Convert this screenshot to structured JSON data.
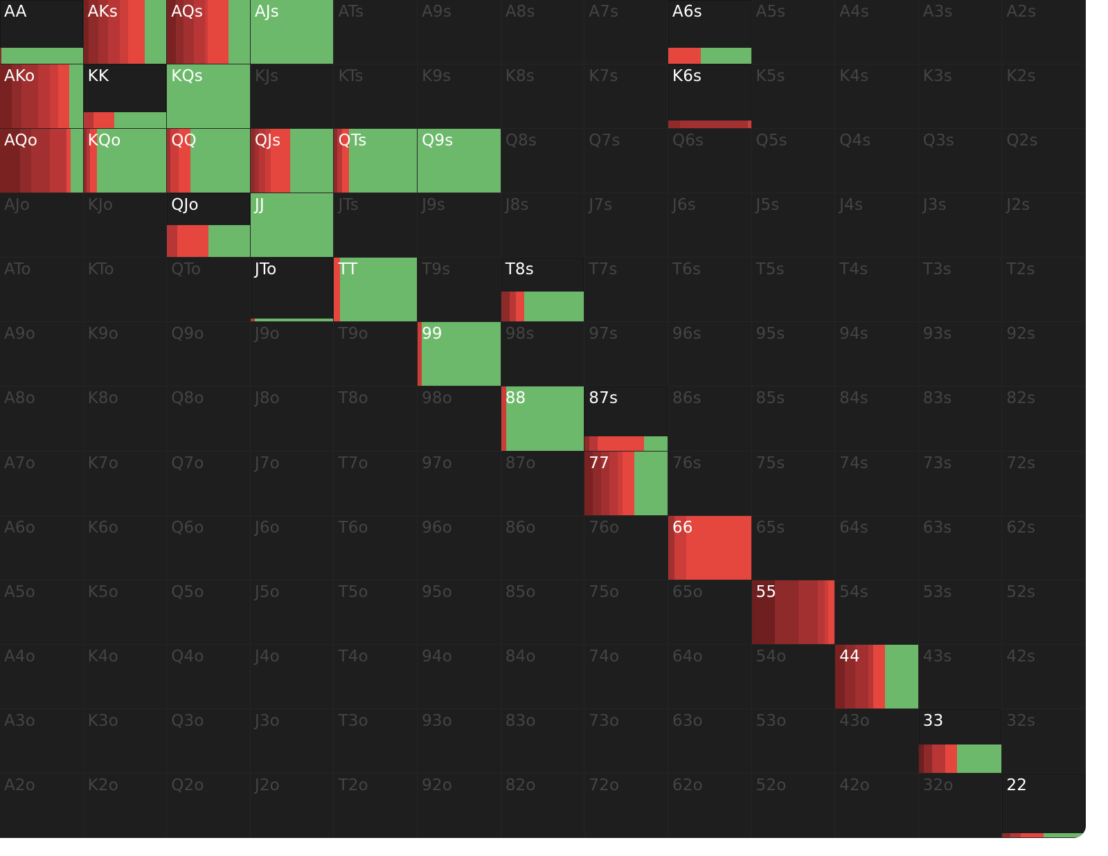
{
  "colors": {
    "background": "#1e1e1e",
    "empty_label": "#444444",
    "active_label": "#ffffff",
    "raise_light": "#e5473f",
    "raise_dark": "#6f1f1f",
    "call_green": "#6db96b"
  },
  "hands": [
    "AA",
    "AKs",
    "AQs",
    "AJs",
    "ATs",
    "A9s",
    "A8s",
    "A7s",
    "A6s",
    "A5s",
    "A4s",
    "A3s",
    "A2s",
    "AKo",
    "KK",
    "KQs",
    "KJs",
    "KTs",
    "K9s",
    "K8s",
    "K7s",
    "K6s",
    "K5s",
    "K4s",
    "K3s",
    "K2s",
    "AQo",
    "KQo",
    "QQ",
    "QJs",
    "QTs",
    "Q9s",
    "Q8s",
    "Q7s",
    "Q6s",
    "Q5s",
    "Q4s",
    "Q3s",
    "Q2s",
    "AJo",
    "KJo",
    "QJo",
    "JJ",
    "JTs",
    "J9s",
    "J8s",
    "J7s",
    "J6s",
    "J5s",
    "J4s",
    "J3s",
    "J2s",
    "ATo",
    "KTo",
    "QTo",
    "JTo",
    "TT",
    "T9s",
    "T8s",
    "T7s",
    "T6s",
    "T5s",
    "T4s",
    "T3s",
    "T2s",
    "A9o",
    "K9o",
    "Q9o",
    "J9o",
    "T9o",
    "99",
    "98s",
    "97s",
    "96s",
    "95s",
    "94s",
    "93s",
    "92s",
    "A8o",
    "K8o",
    "Q8o",
    "J8o",
    "T8o",
    "98o",
    "88",
    "87s",
    "86s",
    "85s",
    "84s",
    "83s",
    "82s",
    "A7o",
    "K7o",
    "Q7o",
    "J7o",
    "T7o",
    "97o",
    "87o",
    "77",
    "76s",
    "75s",
    "74s",
    "73s",
    "72s",
    "A6o",
    "K6o",
    "Q6o",
    "J6o",
    "T6o",
    "96o",
    "86o",
    "76o",
    "66",
    "65s",
    "64s",
    "63s",
    "62s",
    "A5o",
    "K5o",
    "Q5o",
    "J5o",
    "T5o",
    "95o",
    "85o",
    "75o",
    "65o",
    "55",
    "54s",
    "53s",
    "52s",
    "A4o",
    "K4o",
    "Q4o",
    "J4o",
    "T4o",
    "94o",
    "84o",
    "74o",
    "64o",
    "54o",
    "44",
    "43s",
    "42s",
    "A3o",
    "K3o",
    "Q3o",
    "J3o",
    "T3o",
    "93o",
    "83o",
    "73o",
    "63o",
    "53o",
    "43o",
    "33",
    "32s",
    "A2o",
    "K2o",
    "Q2o",
    "J2o",
    "T2o",
    "92o",
    "82o",
    "72o",
    "62o",
    "52o",
    "42o",
    "32o",
    "22"
  ],
  "weighted": {
    "AA": {
      "freq": 0.25,
      "segments": [
        [
          "#8a2a2a",
          0.02
        ],
        [
          "#6db96b",
          0.98
        ]
      ]
    },
    "AKs": {
      "freq": 1.0,
      "segments": [
        [
          "#7a2222",
          0.06
        ],
        [
          "#8e2a2a",
          0.12
        ],
        [
          "#a33030",
          0.12
        ],
        [
          "#b83636",
          0.14
        ],
        [
          "#cc3d3a",
          0.1
        ],
        [
          "#e5473f",
          0.2
        ],
        [
          "#6db96b",
          0.26
        ]
      ]
    },
    "AQs": {
      "freq": 1.0,
      "segments": [
        [
          "#7a2222",
          0.12
        ],
        [
          "#8e2a2a",
          0.1
        ],
        [
          "#a33030",
          0.14
        ],
        [
          "#b83636",
          0.14
        ],
        [
          "#cc3d3a",
          0.04
        ],
        [
          "#e5473f",
          0.28
        ],
        [
          "#6db96b",
          0.28
        ]
      ]
    },
    "AJs": {
      "freq": 1.0,
      "segments": [
        [
          "#6db96b",
          1.0
        ]
      ]
    },
    "A6s": {
      "freq": 0.25,
      "segments": [
        [
          "#e5473f",
          0.39
        ],
        [
          "#6db96b",
          0.61
        ]
      ]
    },
    "AKo": {
      "freq": 1.0,
      "segments": [
        [
          "#7a2222",
          0.14
        ],
        [
          "#8e2a2a",
          0.12
        ],
        [
          "#a33030",
          0.2
        ],
        [
          "#b83636",
          0.14
        ],
        [
          "#cc3d3a",
          0.1
        ],
        [
          "#e5473f",
          0.14
        ],
        [
          "#6db96b",
          0.16
        ]
      ]
    },
    "KK": {
      "freq": 0.25,
      "segments": [
        [
          "#b83636",
          0.12
        ],
        [
          "#e5473f",
          0.25
        ],
        [
          "#6db96b",
          0.63
        ]
      ]
    },
    "KQs": {
      "freq": 1.0,
      "segments": [
        [
          "#6db96b",
          1.0
        ]
      ]
    },
    "K6s": {
      "freq": 0.12,
      "segments": [
        [
          "#8e2a2a",
          0.14
        ],
        [
          "#a33030",
          0.82
        ],
        [
          "#cc3d3a",
          0.04
        ]
      ]
    },
    "AQo": {
      "freq": 1.0,
      "segments": [
        [
          "#7a2222",
          0.24
        ],
        [
          "#8e2a2a",
          0.14
        ],
        [
          "#a33030",
          0.22
        ],
        [
          "#b83636",
          0.2
        ],
        [
          "#e5473f",
          0.05
        ],
        [
          "#6db96b",
          0.15
        ]
      ]
    },
    "KQo": {
      "freq": 1.0,
      "segments": [
        [
          "#8e2a2a",
          0.04
        ],
        [
          "#b83636",
          0.04
        ],
        [
          "#e5473f",
          0.08
        ],
        [
          "#6db96b",
          0.84
        ]
      ]
    },
    "QQ": {
      "freq": 1.0,
      "segments": [
        [
          "#a33030",
          0.04
        ],
        [
          "#cc3d3a",
          0.1
        ],
        [
          "#e5473f",
          0.14
        ],
        [
          "#6db96b",
          0.72
        ]
      ]
    },
    "QJs": {
      "freq": 1.0,
      "segments": [
        [
          "#8e2a2a",
          0.05
        ],
        [
          "#a33030",
          0.05
        ],
        [
          "#b83636",
          0.08
        ],
        [
          "#cc3d3a",
          0.06
        ],
        [
          "#e5473f",
          0.24
        ],
        [
          "#6db96b",
          0.52
        ]
      ]
    },
    "QTs": {
      "freq": 1.0,
      "segments": [
        [
          "#8e2a2a",
          0.04
        ],
        [
          "#b83636",
          0.06
        ],
        [
          "#e5473f",
          0.08
        ],
        [
          "#6db96b",
          0.82
        ]
      ]
    },
    "Q9s": {
      "freq": 1.0,
      "segments": [
        [
          "#6db96b",
          1.0
        ]
      ]
    },
    "QJo": {
      "freq": 0.5,
      "segments": [
        [
          "#b83636",
          0.12
        ],
        [
          "#e5473f",
          0.38
        ],
        [
          "#6db96b",
          0.5
        ]
      ]
    },
    "JJ": {
      "freq": 1.0,
      "segments": [
        [
          "#6db96b",
          1.0
        ]
      ]
    },
    "JTo": {
      "freq": 0.05,
      "segments": [
        [
          "#b83636",
          0.05
        ],
        [
          "#6db96b",
          0.95
        ]
      ]
    },
    "TT": {
      "freq": 1.0,
      "segments": [
        [
          "#e5473f",
          0.07
        ],
        [
          "#6db96b",
          0.93
        ]
      ]
    },
    "T8s": {
      "freq": 0.47,
      "segments": [
        [
          "#8e2a2a",
          0.1
        ],
        [
          "#b83636",
          0.08
        ],
        [
          "#e5473f",
          0.1
        ],
        [
          "#6db96b",
          0.72
        ]
      ]
    },
    "99": {
      "freq": 1.0,
      "segments": [
        [
          "#cc3d3a",
          0.05
        ],
        [
          "#6db96b",
          0.95
        ]
      ]
    },
    "88": {
      "freq": 1.0,
      "segments": [
        [
          "#cc3d3a",
          0.06
        ],
        [
          "#6db96b",
          0.94
        ]
      ]
    },
    "87s": {
      "freq": 0.22,
      "segments": [
        [
          "#8e2a2a",
          0.06
        ],
        [
          "#b83636",
          0.1
        ],
        [
          "#e5473f",
          0.56
        ],
        [
          "#6db96b",
          0.28
        ]
      ]
    },
    "77": {
      "freq": 1.0,
      "segments": [
        [
          "#7a2222",
          0.1
        ],
        [
          "#8e2a2a",
          0.1
        ],
        [
          "#a33030",
          0.1
        ],
        [
          "#b83636",
          0.1
        ],
        [
          "#cc3d3a",
          0.06
        ],
        [
          "#e5473f",
          0.14
        ],
        [
          "#6db96b",
          0.4
        ]
      ]
    },
    "66": {
      "freq": 1.0,
      "segments": [
        [
          "#a33030",
          0.08
        ],
        [
          "#cc3d3a",
          0.14
        ],
        [
          "#e5473f",
          0.78
        ]
      ]
    },
    "55": {
      "freq": 1.0,
      "segments": [
        [
          "#6f1f1f",
          0.28
        ],
        [
          "#8e2a2a",
          0.28
        ],
        [
          "#a33030",
          0.24
        ],
        [
          "#b83636",
          0.08
        ],
        [
          "#cc3d3a",
          0.04
        ],
        [
          "#e5473f",
          0.08
        ]
      ]
    },
    "44": {
      "freq": 1.0,
      "segments": [
        [
          "#7a2222",
          0.12
        ],
        [
          "#8e2a2a",
          0.12
        ],
        [
          "#a33030",
          0.16
        ],
        [
          "#b83636",
          0.06
        ],
        [
          "#e5473f",
          0.14
        ],
        [
          "#6db96b",
          0.4
        ]
      ]
    },
    "33": {
      "freq": 0.45,
      "segments": [
        [
          "#6f1f1f",
          0.06
        ],
        [
          "#8e2a2a",
          0.1
        ],
        [
          "#b83636",
          0.16
        ],
        [
          "#e5473f",
          0.14
        ],
        [
          "#6db96b",
          0.54
        ]
      ]
    },
    "22": {
      "freq": 0.06,
      "segments": [
        [
          "#8e2a2a",
          0.1
        ],
        [
          "#b83636",
          0.12
        ],
        [
          "#e5473f",
          0.28
        ],
        [
          "#6db96b",
          0.5
        ]
      ]
    }
  }
}
